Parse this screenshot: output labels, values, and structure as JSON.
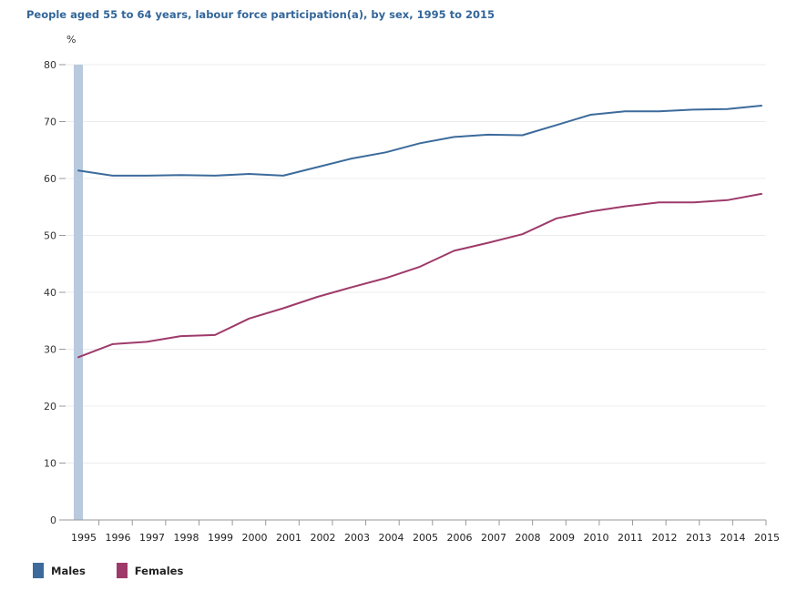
{
  "chart_data": {
    "type": "line",
    "title": "People aged 55 to 64 years, labour force participation(a), by sex, 1995 to 2015",
    "ylabel": "%",
    "xlabel": "",
    "ylim": [
      0,
      80
    ],
    "yticks": [
      0,
      10,
      20,
      30,
      40,
      50,
      60,
      70,
      80
    ],
    "categories": [
      "1995",
      "1996",
      "1997",
      "1998",
      "1999",
      "2000",
      "2001",
      "2002",
      "2003",
      "2004",
      "2005",
      "2006",
      "2007",
      "2008",
      "2009",
      "2010",
      "2011",
      "2012",
      "2013",
      "2014",
      "2015"
    ],
    "series": [
      {
        "name": "Males",
        "color": "#3c6b9b",
        "values": [
          61.4,
          60.5,
          60.5,
          60.6,
          60.5,
          60.8,
          60.5,
          62.0,
          63.5,
          64.6,
          66.2,
          67.3,
          67.7,
          67.6,
          69.4,
          71.2,
          71.8,
          71.8,
          72.1,
          72.2,
          72.8
        ]
      },
      {
        "name": "Females",
        "color": "#9e3a6a",
        "values": [
          28.6,
          30.9,
          31.3,
          32.3,
          32.5,
          35.4,
          37.2,
          39.2,
          40.9,
          42.5,
          44.5,
          47.3,
          48.7,
          50.2,
          53.0,
          54.2,
          55.1,
          55.8,
          55.8,
          56.2,
          57.3
        ]
      }
    ]
  }
}
